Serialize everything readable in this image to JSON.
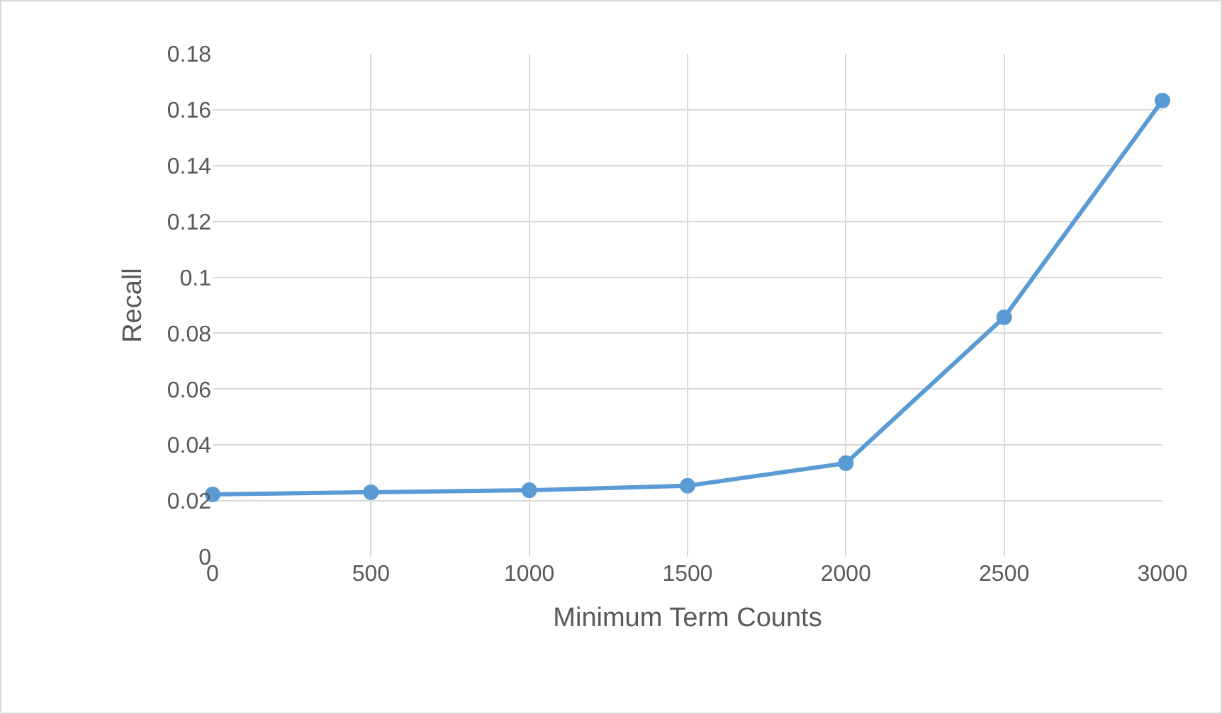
{
  "chart_data": {
    "type": "line",
    "xlabel": "Minimum Term Counts",
    "ylabel": "Recall",
    "x": [
      0,
      500,
      1000,
      1500,
      2000,
      2500,
      3000
    ],
    "series": [
      {
        "color": "#5b9bd5",
        "values": [
          0.0223,
          0.0231,
          0.0238,
          0.0254,
          0.0335,
          0.0857,
          0.1633
        ]
      }
    ],
    "xlim": [
      0,
      3000
    ],
    "xticks": [
      0,
      500,
      1000,
      1500,
      2000,
      2500,
      3000
    ],
    "ylim": [
      0,
      0.18
    ],
    "yticks": [
      0,
      0.02,
      0.04,
      0.06,
      0.08,
      0.1,
      0.12,
      0.14,
      0.16,
      0.18
    ],
    "grid": true,
    "marker": "circle",
    "line_style": "solid"
  }
}
